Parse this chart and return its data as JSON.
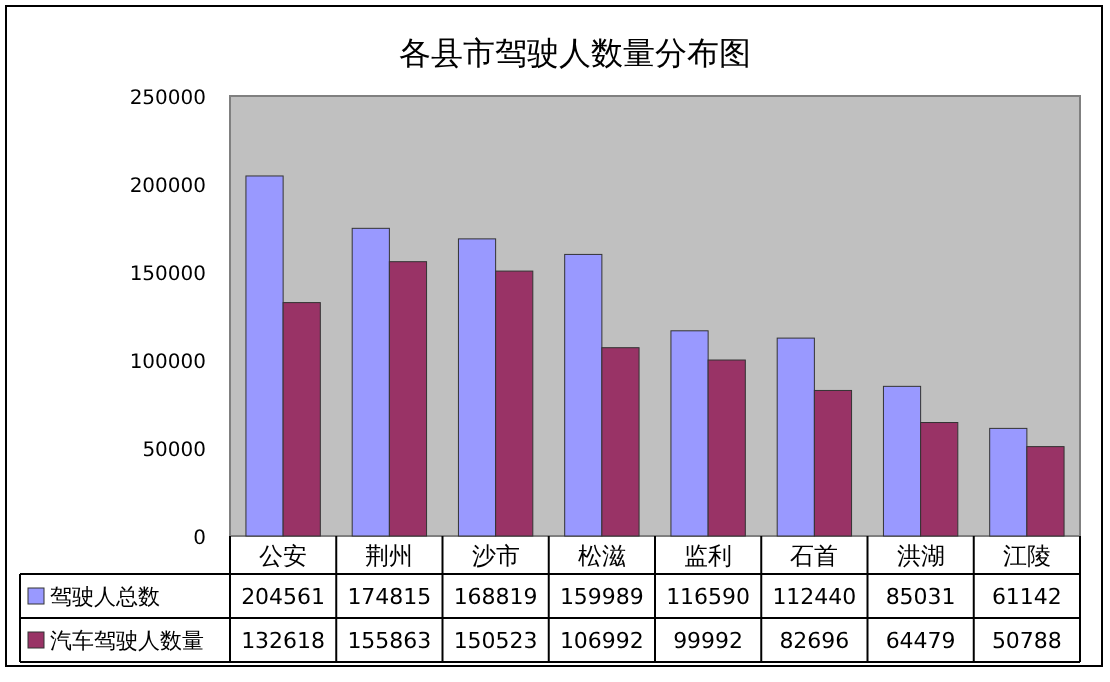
{
  "chart_data": {
    "type": "bar",
    "title": "各县市驾驶人数量分布图",
    "categories": [
      "公安",
      "荆州",
      "沙市",
      "松滋",
      "监利",
      "石首",
      "洪湖",
      "江陵"
    ],
    "series": [
      {
        "name": "驾驶人总数",
        "color": "#9999ff",
        "values": [
          204561,
          174815,
          168819,
          159989,
          116590,
          112440,
          85031,
          61142
        ]
      },
      {
        "name": "汽车驾驶人数量",
        "color": "#993366",
        "values": [
          132618,
          155863,
          150523,
          106992,
          99992,
          82696,
          64479,
          50788
        ]
      }
    ],
    "ylim": [
      0,
      250000
    ],
    "yticks": [
      0,
      50000,
      100000,
      150000,
      200000,
      250000
    ],
    "grid": false,
    "legend": "bottom",
    "data_labels": true
  }
}
